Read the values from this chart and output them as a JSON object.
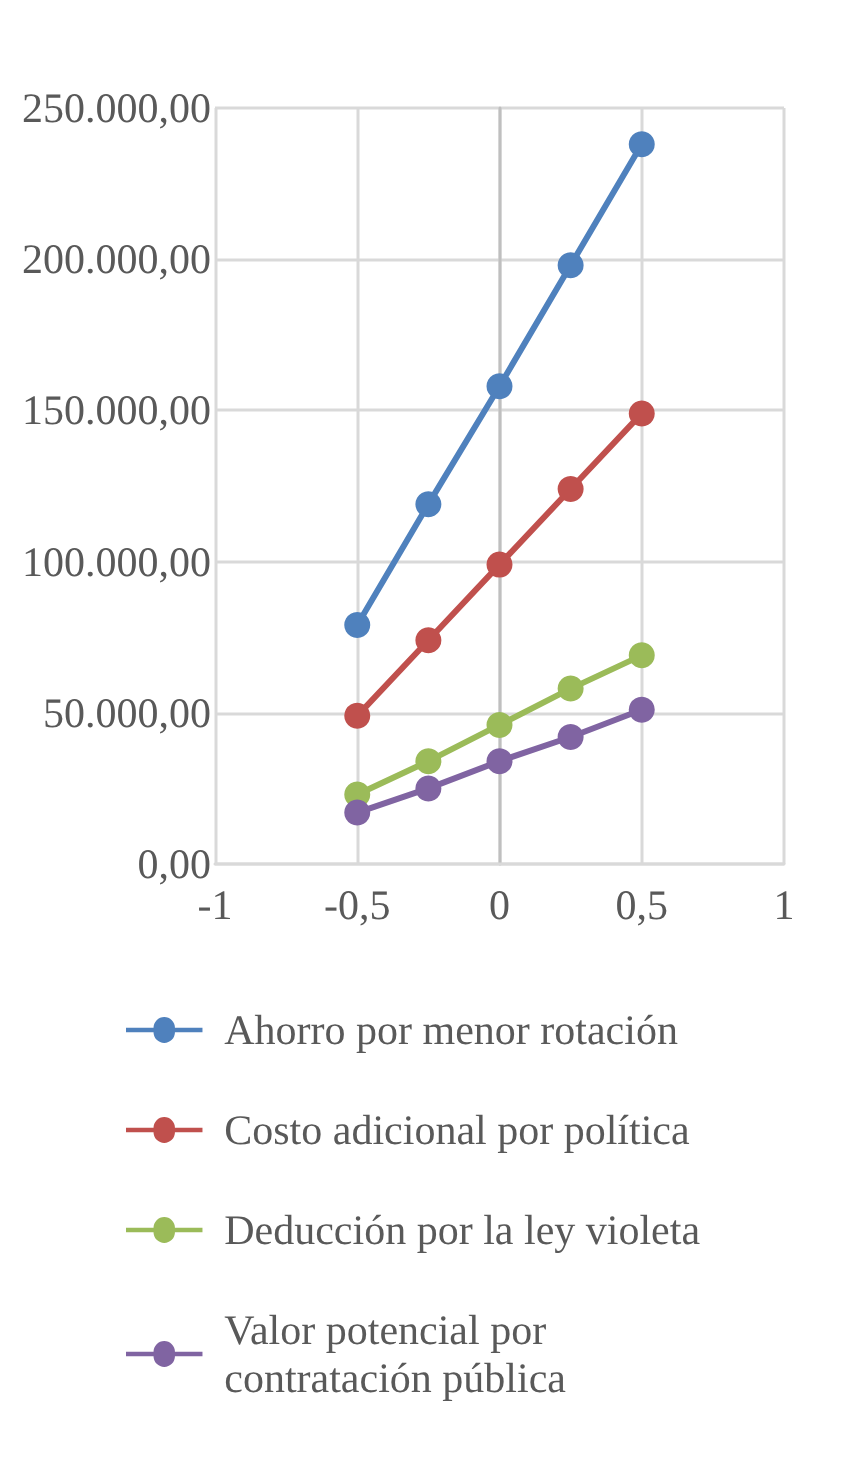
{
  "chart_data": {
    "type": "line",
    "x": [
      -0.5,
      -0.25,
      0,
      0.25,
      0.5
    ],
    "series": [
      {
        "name": "Ahorro por menor rotación",
        "color": "#4f81bd",
        "values": [
          79000,
          119000,
          158000,
          198000,
          238000
        ]
      },
      {
        "name": "Costo adicional por política",
        "color": "#c0504d",
        "values": [
          49000,
          74000,
          99000,
          124000,
          149000
        ]
      },
      {
        "name": "Deducción por la ley violeta",
        "color": "#9bbb59",
        "values": [
          23000,
          34000,
          46000,
          58000,
          69000
        ]
      },
      {
        "name": "Valor potencial por contratación pública",
        "color": "#8064a2",
        "values": [
          17000,
          25000,
          34000,
          42000,
          51000
        ]
      }
    ],
    "xlim": [
      -1,
      1
    ],
    "xticks": [
      -1,
      {
        "value": -0.5,
        "label": "-0,5"
      },
      0,
      {
        "value": 0.5,
        "label": "0,5"
      },
      1
    ],
    "ylim": [
      0,
      250000
    ],
    "yticks": [
      {
        "value": 0,
        "label": "0,00"
      },
      {
        "value": 50000,
        "label": "50.000,00"
      },
      {
        "value": 100000,
        "label": "100.000,00"
      },
      {
        "value": 150000,
        "label": "150.000,00"
      },
      {
        "value": 200000,
        "label": "200.000,00"
      },
      {
        "value": 250000,
        "label": "250.000,00"
      }
    ],
    "grid": true,
    "legend": "bottom",
    "marker": "circle",
    "line_style": "solid"
  }
}
